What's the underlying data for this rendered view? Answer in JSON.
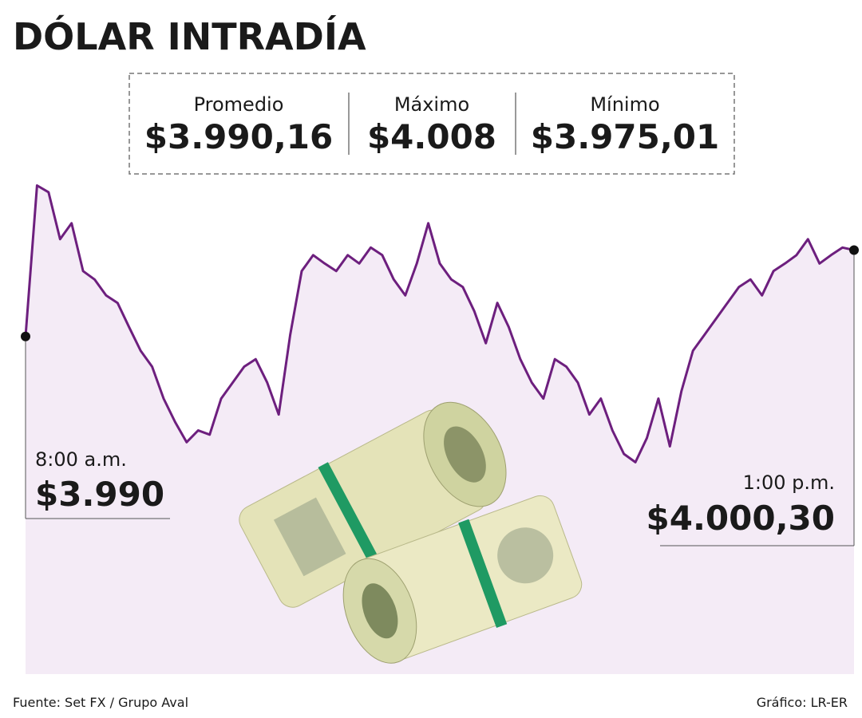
{
  "chart_data": {
    "type": "line",
    "title": "DÓLAR INTRADÍA",
    "stats": {
      "labels": [
        "Promedio",
        "Máximo",
        "Mínimo"
      ],
      "values": [
        3990.16,
        4008,
        3975.01
      ],
      "value_labels": [
        "$3.990,16",
        "$4.008",
        "$3.975,01"
      ]
    },
    "start_label": "8:00 a.m.",
    "start_value_label": "$3.990",
    "end_label": "1:00 p.m.",
    "end_value_label": "$4.000,30",
    "color": "#6d1f7e",
    "fill": "#f4ebf6",
    "ylim": [
      3974,
      4009
    ],
    "values": [
      3990,
      4008,
      4007.2,
      4001.6,
      4003.5,
      3997.8,
      3996.8,
      3994.9,
      3994.0,
      3991.1,
      3988.3,
      3986.4,
      3982.6,
      3979.8,
      3977.4,
      3978.8,
      3978.3,
      3982.6,
      3984.5,
      3986.4,
      3987.3,
      3984.5,
      3980.7,
      3990.2,
      3997.8,
      3999.7,
      3998.7,
      3997.8,
      3999.7,
      3998.7,
      4000.6,
      3999.7,
      3996.8,
      3994.9,
      3998.7,
      4003.5,
      3998.7,
      3996.8,
      3995.9,
      3993.0,
      3989.2,
      3994.0,
      3991.1,
      3987.3,
      3984.5,
      3982.6,
      3987.3,
      3986.4,
      3984.5,
      3980.7,
      3982.6,
      3978.8,
      3976.0,
      3975.01,
      3977.9,
      3982.6,
      3976.9,
      3983.5,
      3988.3,
      3990.2,
      3992.1,
      3994.0,
      3995.9,
      3996.8,
      3994.9,
      3997.8,
      3998.7,
      3999.7,
      4001.6,
      3998.7,
      3999.7,
      4000.6,
      4000.3
    ],
    "source": "Fuente: Set FX / Grupo Aval",
    "credit": "Gráfico: LR-ER"
  }
}
